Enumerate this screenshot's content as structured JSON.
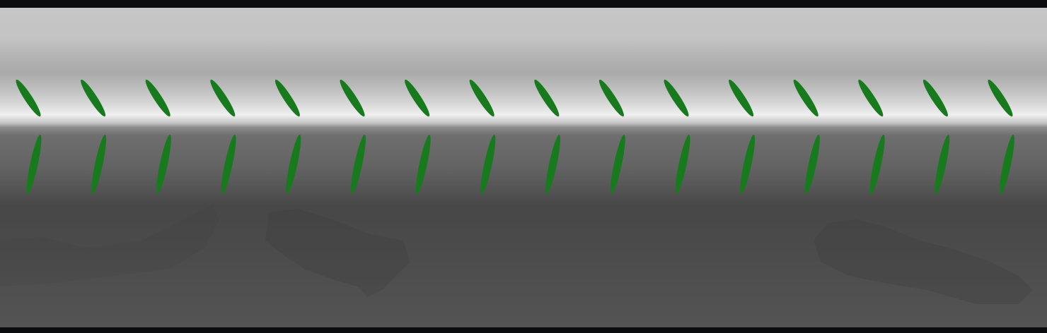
{
  "scene": {
    "frame_color": "#0b0c0d",
    "marker_color": "#177a1d",
    "upper_row": {
      "count": 16,
      "tilt_degrees": -33
    },
    "lower_row": {
      "count": 16,
      "tilt_degrees": 12
    }
  }
}
